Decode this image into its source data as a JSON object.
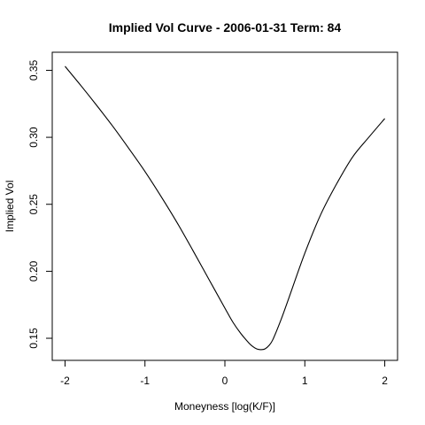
{
  "chart_data": {
    "type": "line",
    "title": "Implied Vol Curve -  2006-01-31 Term: 84",
    "xlabel": "Moneyness [log(K/F)]",
    "ylabel": "Implied Vol",
    "xlim": [
      -2.16,
      2.16
    ],
    "ylim": [
      0.1335,
      0.3635
    ],
    "x_ticks": [
      -2,
      -1,
      0,
      1,
      2
    ],
    "x_tick_labels": [
      "-2",
      "-1",
      "0",
      "1",
      "2"
    ],
    "y_ticks": [
      0.15,
      0.2,
      0.25,
      0.3,
      0.35
    ],
    "y_tick_labels": [
      "0.15",
      "0.20",
      "0.25",
      "0.30",
      "0.35"
    ],
    "grid": false,
    "series": [
      {
        "color": "#000000",
        "x": [
          -2.0,
          -1.8,
          -1.6,
          -1.4,
          -1.2,
          -1.0,
          -0.8,
          -0.6,
          -0.4,
          -0.2,
          0.0,
          0.1,
          0.2,
          0.3,
          0.35,
          0.4,
          0.45,
          0.5,
          0.55,
          0.6,
          0.7,
          0.8,
          1.0,
          1.2,
          1.4,
          1.6,
          1.8,
          2.0
        ],
        "y": [
          0.353,
          0.3385,
          0.3235,
          0.308,
          0.2915,
          0.2745,
          0.256,
          0.2365,
          0.2155,
          0.194,
          0.1725,
          0.162,
          0.1535,
          0.1465,
          0.1438,
          0.142,
          0.1415,
          0.142,
          0.1445,
          0.149,
          0.1635,
          0.18,
          0.2135,
          0.2425,
          0.2655,
          0.2855,
          0.3,
          0.314
        ]
      }
    ]
  }
}
